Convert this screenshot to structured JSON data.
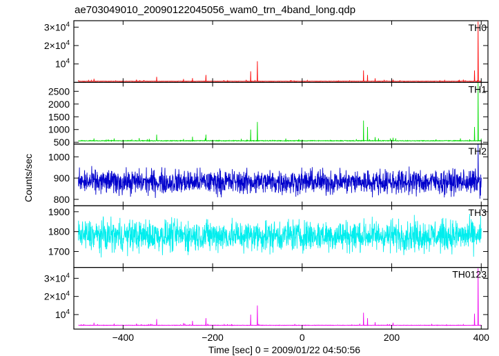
{
  "chart_data": {
    "type": "line",
    "title": "ae703049010_20090122045056_wam0_trn_4band_long.qdp",
    "xlabel": "Time [sec] 0 = 2009/01/22 04:50:56",
    "ylabel": "Counts/sec",
    "xlim": [
      -510,
      415
    ],
    "x_ticks": [
      {
        "value": -400,
        "label": "−400"
      },
      {
        "value": -200,
        "label": "−200"
      },
      {
        "value": 0,
        "label": "0"
      },
      {
        "value": 200,
        "label": "200"
      },
      {
        "value": 400,
        "label": "400"
      }
    ],
    "sample_step": 0.5,
    "panels": [
      {
        "name": "TH0",
        "color": "#ff0000",
        "ylim": [
          0,
          33500
        ],
        "baseline": 600,
        "noise": 150,
        "mode": "spiky",
        "ticks": [
          {
            "value": 10000,
            "label": "10^4",
            "mant": "",
            "exp": "4"
          },
          {
            "value": 20000,
            "label": "2×10^4",
            "mant": "2×",
            "exp": "4"
          },
          {
            "value": 30000,
            "label": "3×10^4",
            "mant": "3×",
            "exp": "4"
          }
        ],
        "spikes": [
          [
            -465,
            2000
          ],
          [
            -370,
            1500
          ],
          [
            -325,
            3000
          ],
          [
            -265,
            1800
          ],
          [
            -245,
            2300
          ],
          [
            -215,
            4000
          ],
          [
            -125,
            1400
          ],
          [
            -115,
            6000
          ],
          [
            -100,
            11500
          ],
          [
            137,
            6500
          ],
          [
            146,
            4000
          ],
          [
            163,
            2200
          ],
          [
            203,
            1500
          ],
          [
            360,
            1500
          ],
          [
            385,
            6500
          ],
          [
            393,
            33000
          ]
        ]
      },
      {
        "name": "TH1",
        "color": "#00dd00",
        "ylim": [
          430,
          2850
        ],
        "baseline": 560,
        "noise": 25,
        "mode": "spiky",
        "ticks": [
          {
            "value": 500,
            "label": "500"
          },
          {
            "value": 1000,
            "label": "1000"
          },
          {
            "value": 1500,
            "label": "1500"
          },
          {
            "value": 2000,
            "label": "2000"
          },
          {
            "value": 2500,
            "label": "2500"
          }
        ],
        "spikes": [
          [
            -465,
            650
          ],
          [
            -420,
            650
          ],
          [
            -325,
            800
          ],
          [
            -245,
            720
          ],
          [
            -215,
            800
          ],
          [
            -115,
            1000
          ],
          [
            -100,
            1300
          ],
          [
            137,
            1350
          ],
          [
            146,
            1100
          ],
          [
            163,
            700
          ],
          [
            203,
            680
          ],
          [
            385,
            1100
          ],
          [
            393,
            2850
          ]
        ]
      },
      {
        "name": "TH2",
        "color": "#0000cc",
        "ylim": [
          770,
          1060
        ],
        "baseline": 882,
        "noise": 40,
        "mode": "noisy",
        "ticks": [
          {
            "value": 800,
            "label": "800"
          },
          {
            "value": 900,
            "label": "900"
          },
          {
            "value": 1000,
            "label": "1000"
          }
        ],
        "spikes": [
          [
            393,
            1060
          ]
        ]
      },
      {
        "name": "TH3",
        "color": "#00eeee",
        "ylim": [
          1620,
          1930
        ],
        "baseline": 1780,
        "noise": 55,
        "mode": "noisy",
        "ticks": [
          {
            "value": 1700,
            "label": "1700"
          },
          {
            "value": 1800,
            "label": "1800"
          },
          {
            "value": 1900,
            "label": "1900"
          }
        ],
        "spikes": []
      },
      {
        "name": "TH0123",
        "color": "#ee00ee",
        "ylim": [
          2000,
          36000
        ],
        "baseline": 4100,
        "noise": 200,
        "mode": "spiky",
        "ticks": [
          {
            "value": 10000,
            "label": "10^4",
            "mant": "",
            "exp": "4"
          },
          {
            "value": 20000,
            "label": "2×10^4",
            "mant": "2×",
            "exp": "4"
          },
          {
            "value": 30000,
            "label": "3×10^4",
            "mant": "3×",
            "exp": "4"
          }
        ],
        "spikes": [
          [
            -465,
            5500
          ],
          [
            -420,
            5000
          ],
          [
            -370,
            5000
          ],
          [
            -325,
            7500
          ],
          [
            -265,
            5300
          ],
          [
            -245,
            6500
          ],
          [
            -215,
            8000
          ],
          [
            -115,
            10000
          ],
          [
            -100,
            15000
          ],
          [
            137,
            11000
          ],
          [
            146,
            8000
          ],
          [
            163,
            5800
          ],
          [
            203,
            5500
          ],
          [
            385,
            10500
          ],
          [
            393,
            35500
          ]
        ]
      }
    ]
  }
}
